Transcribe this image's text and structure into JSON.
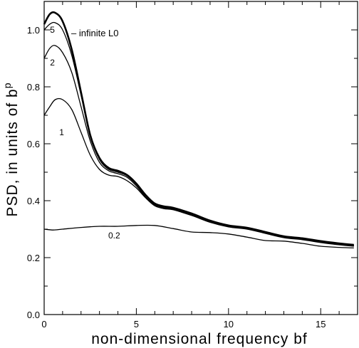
{
  "chart_data": {
    "type": "line",
    "xlabel": "non-dimensional frequency bf",
    "ylabel_main": "PSD, in units of b",
    "ylabel_sup": "p",
    "xlim": [
      0,
      17
    ],
    "ylim": [
      0,
      1.1
    ],
    "xticks": [
      0,
      5,
      10,
      15
    ],
    "yticks": [
      0.0,
      0.2,
      0.4,
      0.6,
      0.8,
      1.0
    ],
    "ytick_labels": [
      "0.0",
      "0.2",
      "0.4",
      "0.6",
      "0.8",
      "1.0"
    ],
    "legend_label": "– infinite L0",
    "series": [
      {
        "name": "infinite L0",
        "stroke_width": 2.6,
        "x": [
          0,
          0.3,
          0.6,
          1.0,
          1.5,
          2.0,
          2.5,
          3.0,
          3.5,
          4.0,
          4.5,
          5.0,
          5.5,
          6.0,
          6.5,
          7.0,
          8.0,
          9.0,
          10.0,
          11.0,
          12.0,
          13.0,
          14.0,
          15.0,
          16.0,
          16.8
        ],
        "y": [
          1.02,
          1.055,
          1.06,
          1.03,
          0.93,
          0.78,
          0.63,
          0.55,
          0.515,
          0.505,
          0.49,
          0.46,
          0.42,
          0.39,
          0.38,
          0.375,
          0.355,
          0.33,
          0.313,
          0.305,
          0.29,
          0.275,
          0.268,
          0.258,
          0.25,
          0.245
        ]
      },
      {
        "name": "5",
        "stroke_width": 1.3,
        "x": [
          0,
          0.3,
          0.6,
          1.0,
          1.5,
          2.0,
          2.5,
          3.0,
          3.5,
          4.0,
          4.5,
          5.0,
          5.5,
          6.0,
          6.5,
          7.0,
          8.0,
          9.0,
          10.0,
          11.0,
          12.0,
          13.0,
          14.0,
          15.0,
          16.0,
          16.8
        ],
        "y": [
          1.0,
          1.02,
          1.025,
          1.0,
          0.91,
          0.77,
          0.625,
          0.545,
          0.51,
          0.5,
          0.487,
          0.457,
          0.418,
          0.388,
          0.377,
          0.372,
          0.352,
          0.328,
          0.311,
          0.303,
          0.288,
          0.273,
          0.266,
          0.256,
          0.248,
          0.243
        ]
      },
      {
        "name": "2",
        "stroke_width": 1.3,
        "x": [
          0,
          0.3,
          0.6,
          1.0,
          1.5,
          2.0,
          2.5,
          3.0,
          3.5,
          4.0,
          4.5,
          5.0,
          5.5,
          6.0,
          6.5,
          7.0,
          8.0,
          9.0,
          10.0,
          11.0,
          12.0,
          13.0,
          14.0,
          15.0,
          16.0,
          16.8
        ],
        "y": [
          0.9,
          0.935,
          0.945,
          0.92,
          0.85,
          0.73,
          0.61,
          0.535,
          0.505,
          0.495,
          0.482,
          0.452,
          0.413,
          0.385,
          0.375,
          0.37,
          0.35,
          0.326,
          0.31,
          0.302,
          0.287,
          0.272,
          0.265,
          0.255,
          0.247,
          0.242
        ]
      },
      {
        "name": "1",
        "stroke_width": 1.3,
        "x": [
          0,
          0.3,
          0.6,
          1.0,
          1.5,
          2.0,
          2.5,
          3.0,
          3.5,
          4.0,
          4.5,
          5.0,
          5.5,
          6.0,
          6.5,
          7.0,
          8.0,
          9.0,
          10.0,
          11.0,
          12.0,
          13.0,
          14.0,
          15.0,
          16.0,
          16.8
        ],
        "y": [
          0.7,
          0.73,
          0.755,
          0.755,
          0.72,
          0.64,
          0.56,
          0.51,
          0.49,
          0.485,
          0.47,
          0.445,
          0.41,
          0.382,
          0.372,
          0.368,
          0.348,
          0.324,
          0.308,
          0.3,
          0.285,
          0.27,
          0.263,
          0.253,
          0.245,
          0.24
        ]
      },
      {
        "name": "0.2",
        "stroke_width": 1.3,
        "x": [
          0,
          0.5,
          1.0,
          2.0,
          3.0,
          4.0,
          5.0,
          6.0,
          7.0,
          8.0,
          9.0,
          10.0,
          11.0,
          12.0,
          13.0,
          14.0,
          15.0,
          16.0,
          16.8
        ],
        "y": [
          0.3,
          0.297,
          0.3,
          0.306,
          0.31,
          0.31,
          0.313,
          0.313,
          0.302,
          0.29,
          0.288,
          0.283,
          0.272,
          0.26,
          0.258,
          0.25,
          0.24,
          0.236,
          0.234
        ]
      }
    ],
    "curve_labels": [
      {
        "text": "5",
        "x": 0.45,
        "y": 0.99
      },
      {
        "text": "2",
        "x": 0.45,
        "y": 0.875
      },
      {
        "text": "1",
        "x": 0.95,
        "y": 0.63
      },
      {
        "text": "0.2",
        "x": 3.8,
        "y": 0.268
      }
    ]
  }
}
